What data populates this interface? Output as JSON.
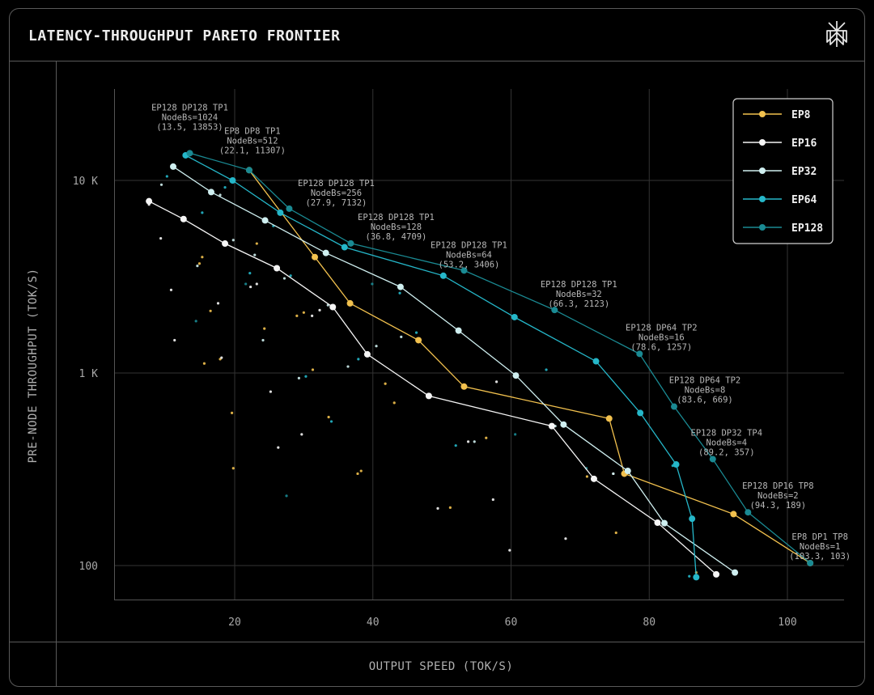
{
  "header": {
    "title": "LATENCY-THROUGHPUT PARETO FRONTIER",
    "logo_icon": "perplexity-logo-icon"
  },
  "colors": {
    "background": "#000000",
    "panel_border": "#5a5a5a",
    "grid": "#3a3a3a",
    "text": "#d8d8d8",
    "axis_text": "#a8a8a8",
    "annotation": "#b8b8b8"
  },
  "chart_data": {
    "type": "line",
    "title": "LATENCY-THROUGHPUT PARETO FRONTIER",
    "xlabel": "OUTPUT SPEED (TOK/S)",
    "ylabel": "PRE-NODE THROUGHPUT (TOK/S)",
    "x_scale": "linear",
    "y_scale": "log",
    "xlim": [
      0,
      107
    ],
    "ylim": [
      70,
      27000
    ],
    "x_ticks": [
      {
        "value": 20,
        "label": "20"
      },
      {
        "value": 40,
        "label": "40"
      },
      {
        "value": 60,
        "label": "60"
      },
      {
        "value": 80,
        "label": "80"
      },
      {
        "value": 100,
        "label": "100"
      }
    ],
    "y_ticks": [
      {
        "value": 100,
        "label": "100"
      },
      {
        "value": 1000,
        "label": "1 K"
      },
      {
        "value": 10000,
        "label": "10 K"
      }
    ],
    "grid": true,
    "legend": {
      "placement": "top-right",
      "entries": [
        "EP8",
        "EP16",
        "EP32",
        "EP64",
        "EP128"
      ]
    },
    "series": [
      {
        "name": "EP8",
        "color": "#f2c14e",
        "points": [
          [
            22.1,
            11307
          ],
          [
            31.6,
            4000
          ],
          [
            36.7,
            2300
          ],
          [
            46.6,
            1480
          ],
          [
            53.2,
            850
          ],
          [
            74.2,
            580
          ],
          [
            76.4,
            300
          ],
          [
            92.2,
            185
          ],
          [
            103.3,
            103
          ]
        ]
      },
      {
        "name": "EP16",
        "color": "#f5f5f5",
        "points": [
          [
            7.6,
            7800
          ],
          [
            12.6,
            6300
          ],
          [
            18.6,
            4700
          ],
          [
            26.1,
            3500
          ],
          [
            34.2,
            2200
          ],
          [
            39.2,
            1250
          ],
          [
            48.1,
            760
          ],
          [
            65.9,
            530
          ],
          [
            72.0,
            282
          ],
          [
            81.2,
            167
          ],
          [
            89.7,
            90
          ]
        ]
      },
      {
        "name": "EP32",
        "color": "#cfeff0",
        "points": [
          [
            11.1,
            11800
          ],
          [
            16.6,
            8700
          ],
          [
            24.4,
            6200
          ],
          [
            33.2,
            4200
          ],
          [
            44.0,
            2800
          ],
          [
            52.4,
            1660
          ],
          [
            60.7,
            970
          ],
          [
            67.6,
            540
          ],
          [
            76.9,
            310
          ],
          [
            82.2,
            166
          ],
          [
            92.4,
            92
          ]
        ]
      },
      {
        "name": "EP64",
        "color": "#25b7c9",
        "points": [
          [
            12.9,
            13500
          ],
          [
            19.7,
            10000
          ],
          [
            26.6,
            6800
          ],
          [
            35.9,
            4500
          ],
          [
            50.2,
            3200
          ],
          [
            60.5,
            1950
          ],
          [
            72.3,
            1150
          ],
          [
            78.7,
            620
          ],
          [
            83.9,
            335
          ],
          [
            86.2,
            175
          ],
          [
            86.8,
            87
          ]
        ]
      },
      {
        "name": "EP128",
        "color": "#1a8a93",
        "points": [
          [
            13.5,
            13853
          ],
          [
            22.1,
            11307
          ],
          [
            27.9,
            7132
          ],
          [
            36.8,
            4709
          ],
          [
            53.2,
            3406
          ],
          [
            66.3,
            2123
          ],
          [
            78.6,
            1257
          ],
          [
            83.6,
            669
          ],
          [
            89.2,
            357
          ],
          [
            94.3,
            189
          ],
          [
            103.3,
            103
          ]
        ]
      }
    ],
    "annotations": [
      {
        "lines": [
          "EP128 DP128 TP1",
          "NodeBs=1024",
          "(13.5, 13853)"
        ]
      },
      {
        "lines": [
          "EP8 DP8 TP1",
          "NodeBs=512",
          "(22.1, 11307)"
        ]
      },
      {
        "lines": [
          "EP128 DP128 TP1",
          "NodeBs=256",
          "(27.9, 7132)"
        ]
      },
      {
        "lines": [
          "EP128 DP128 TP1",
          "NodeBs=128",
          "(36.8, 4709)"
        ]
      },
      {
        "lines": [
          "EP128 DP128 TP1",
          "NodeBs=64",
          "(53.2, 3406)"
        ]
      },
      {
        "lines": [
          "EP128 DP128 TP1",
          "NodeBs=32",
          "(66.3, 2123)"
        ]
      },
      {
        "lines": [
          "EP128 DP64 TP2",
          "NodeBs=16",
          "(78.6, 1257)"
        ]
      },
      {
        "lines": [
          "EP128 DP64 TP2",
          "NodeBs=8",
          "(83.6, 669)"
        ]
      },
      {
        "lines": [
          "EP128 DP32 TP4",
          "NodeBs=4",
          "(89.2, 357)"
        ]
      },
      {
        "lines": [
          "EP128 DP16 TP8",
          "NodeBs=2",
          "(94.3, 189)"
        ]
      },
      {
        "lines": [
          "EP8 DP1 TP8",
          "NodeBs=1",
          "(103.3, 103)"
        ]
      }
    ],
    "background_points": [
      {
        "c": "#f2c14e",
        "p": [
          [
            19.6,
            620
          ],
          [
            19.8,
            320
          ],
          [
            15.6,
            1120
          ],
          [
            16.5,
            2100
          ],
          [
            17.9,
            1180
          ],
          [
            14.9,
            3700
          ],
          [
            15.3,
            4000
          ],
          [
            23.2,
            4700
          ],
          [
            24.3,
            1700
          ],
          [
            29.0,
            1980
          ],
          [
            30.0,
            2060
          ],
          [
            31.3,
            1040
          ],
          [
            33.6,
            590
          ],
          [
            37.8,
            300
          ],
          [
            38.3,
            310
          ],
          [
            41.8,
            880
          ],
          [
            43.1,
            700
          ],
          [
            51.2,
            200
          ],
          [
            56.4,
            460
          ],
          [
            71.0,
            290
          ],
          [
            75.2,
            148
          ],
          [
            86.8,
            92
          ]
        ]
      },
      {
        "c": "#f5f5f5",
        "p": [
          [
            7.6,
            7500
          ],
          [
            9.3,
            5000
          ],
          [
            10.8,
            2700
          ],
          [
            11.3,
            1480
          ],
          [
            18.1,
            1200
          ],
          [
            17.6,
            2300
          ],
          [
            22.3,
            2800
          ],
          [
            23.2,
            2900
          ],
          [
            25.2,
            800
          ],
          [
            26.3,
            410
          ],
          [
            29.7,
            480
          ],
          [
            31.2,
            1980
          ],
          [
            32.3,
            2120
          ],
          [
            49.4,
            198
          ],
          [
            53.8,
            440
          ],
          [
            57.4,
            220
          ],
          [
            57.9,
            900
          ],
          [
            59.8,
            120
          ],
          [
            67.9,
            138
          ],
          [
            74.8,
            300
          ]
        ]
      },
      {
        "c": "#cfeff0",
        "p": [
          [
            9.4,
            9500
          ],
          [
            14.6,
            3600
          ],
          [
            17.9,
            8400
          ],
          [
            19.8,
            4900
          ],
          [
            22.9,
            4100
          ],
          [
            24.1,
            1480
          ],
          [
            27.2,
            3100
          ],
          [
            29.3,
            940
          ],
          [
            33.5,
            2250
          ],
          [
            36.4,
            1080
          ],
          [
            40.5,
            1380
          ],
          [
            44.1,
            1540
          ],
          [
            54.7,
            440
          ],
          [
            66.4,
            530
          ],
          [
            74.8,
            300
          ]
        ]
      },
      {
        "c": "#25b7c9",
        "p": [
          [
            10.2,
            10500
          ],
          [
            15.3,
            6800
          ],
          [
            18.6,
            9200
          ],
          [
            22.2,
            3300
          ],
          [
            25.6,
            5800
          ],
          [
            28.1,
            3200
          ],
          [
            30.3,
            960
          ],
          [
            34.0,
            560
          ],
          [
            37.9,
            1180
          ],
          [
            43.9,
            2600
          ],
          [
            46.3,
            1620
          ],
          [
            52.0,
            420
          ],
          [
            65.1,
            1040
          ],
          [
            83.4,
            330
          ],
          [
            85.8,
            88
          ]
        ]
      },
      {
        "c": "#1a8a93",
        "p": [
          [
            14.4,
            1860
          ],
          [
            21.6,
            2900
          ],
          [
            27.5,
            230
          ],
          [
            39.9,
            2900
          ],
          [
            60.6,
            480
          ],
          [
            70.9,
            320
          ],
          [
            82.1,
            170
          ]
        ]
      }
    ]
  }
}
